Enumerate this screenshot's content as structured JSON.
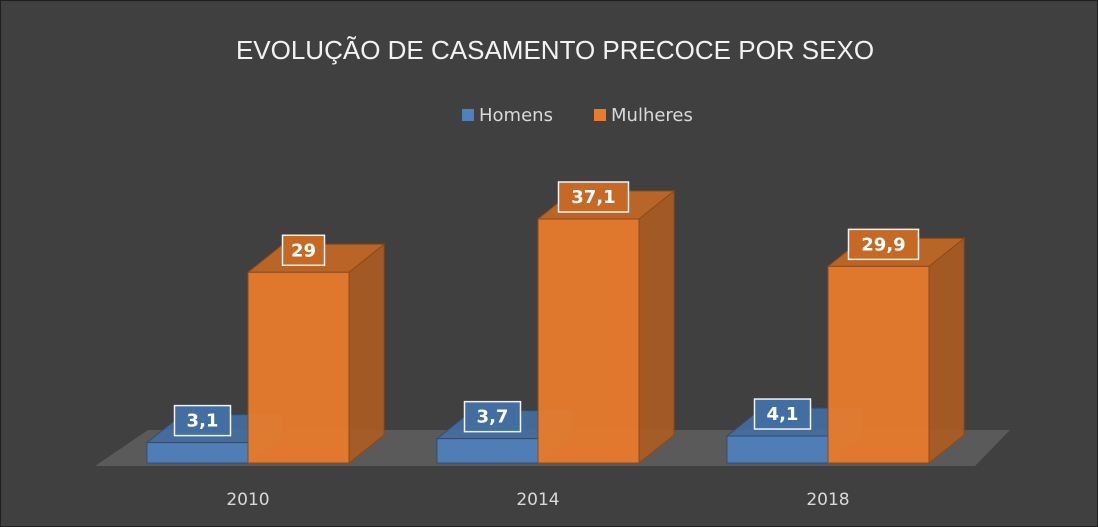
{
  "chart_data": {
    "type": "bar3d",
    "title": "EVOLUÇÃO DE CASAMENTO PRECOCE POR SEXO",
    "categories": [
      "2010",
      "2014",
      "2018"
    ],
    "series": [
      {
        "name": "Homens",
        "color": "#4f81bd",
        "values": [
          3.1,
          3.7,
          4.1
        ],
        "value_labels": [
          "3,1",
          "3,7",
          "4,1"
        ]
      },
      {
        "name": "Mulheres",
        "color": "#e87b2c",
        "values": [
          29,
          37.1,
          29.9
        ],
        "value_labels": [
          "29",
          "37,1",
          "29,9"
        ]
      }
    ],
    "legend": "top"
  }
}
